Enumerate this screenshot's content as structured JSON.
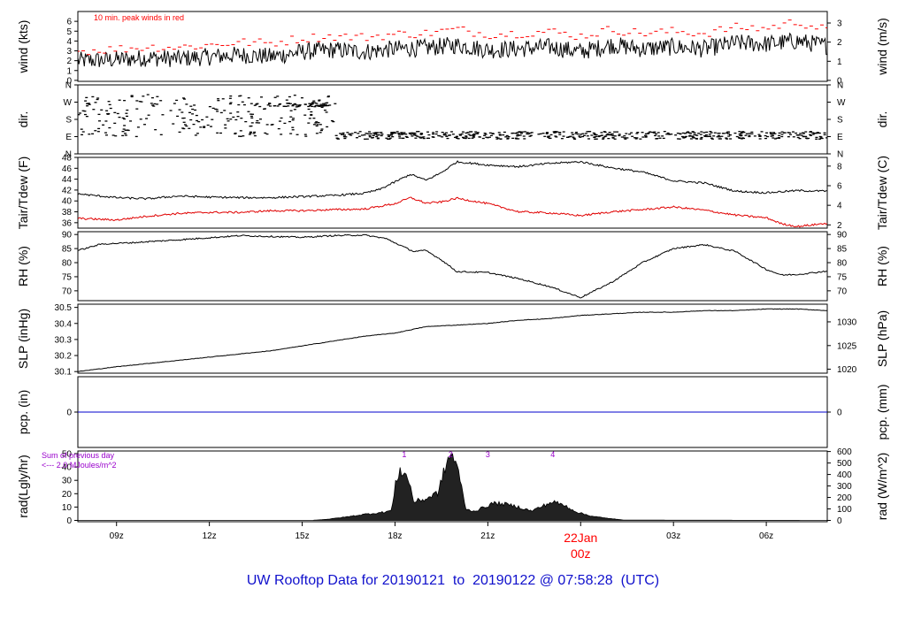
{
  "footer": {
    "text": "UW Rooftop Data for 20190121  to  20190122 @ 07:58:28  (UTC)",
    "color": "#1010cc"
  },
  "colors": {
    "trace": "#000000",
    "peak": "#ff0000",
    "dew": "#e00000",
    "pcp": "#0000cc",
    "note": "#9900cc",
    "date": "#ff0000"
  },
  "time_axis": {
    "range_hours": [
      7.75,
      31.97
    ],
    "ticks": [
      {
        "h": 9,
        "label": "09z"
      },
      {
        "h": 12,
        "label": "12z"
      },
      {
        "h": 15,
        "label": "15z"
      },
      {
        "h": 18,
        "label": "18z"
      },
      {
        "h": 21,
        "label": "21z"
      },
      {
        "h": 24,
        "label": "00z"
      },
      {
        "h": 27,
        "label": "03z"
      },
      {
        "h": 30,
        "label": "06z"
      }
    ],
    "date_label": "22Jan",
    "date_sub_label": "00z"
  },
  "chart_data": [
    {
      "id": "wind",
      "type": "line",
      "ylabel_left": "wind (kts)",
      "ylabel_right": "wind (m/s)",
      "ylim": [
        -0.1,
        7.0
      ],
      "left_ticks": [
        0,
        1,
        2,
        3,
        4,
        5,
        6
      ],
      "right_ticks": [
        {
          "v": 0,
          "label": "0"
        },
        {
          "v": 1.94,
          "label": "1"
        },
        {
          "v": 3.89,
          "label": "2"
        },
        {
          "v": 5.83,
          "label": "3"
        }
      ],
      "annotation": "10 min. peak winds in red",
      "series": [
        {
          "role": "speed",
          "x": [
            7.75,
            9,
            10,
            11,
            12,
            13,
            14,
            15,
            16,
            17,
            18,
            19,
            20,
            21,
            22,
            23,
            24,
            25,
            26,
            27,
            28,
            29,
            30,
            31,
            31.97
          ],
          "y": [
            2.0,
            2.1,
            2.3,
            2.2,
            2.4,
            2.6,
            2.4,
            2.9,
            3.1,
            2.9,
            3.2,
            3.3,
            3.6,
            3.1,
            3.2,
            3.4,
            2.9,
            3.6,
            3.2,
            3.4,
            3.2,
            3.8,
            3.7,
            4.0,
            3.5
          ]
        },
        {
          "role": "peak",
          "x": [
            7.75,
            9,
            10,
            11,
            12,
            13,
            14,
            15,
            16,
            17,
            18,
            19,
            20,
            21,
            22,
            23,
            24,
            25,
            26,
            27,
            28,
            29,
            30,
            31,
            31.97
          ],
          "y": [
            2.8,
            3.0,
            3.2,
            3.2,
            3.4,
            3.7,
            3.6,
            4.1,
            4.3,
            4.2,
            4.5,
            4.6,
            5.0,
            4.5,
            4.6,
            4.8,
            4.3,
            5.0,
            4.6,
            4.8,
            4.6,
            5.2,
            5.1,
            5.8,
            4.9
          ]
        }
      ]
    },
    {
      "id": "dir",
      "type": "scatter",
      "ylabel_left": "dir.",
      "ylabel_right": "dir.",
      "ylim": [
        0,
        360
      ],
      "left_ticks": [
        {
          "v": 0,
          "label": "N"
        },
        {
          "v": 90,
          "label": "E"
        },
        {
          "v": 180,
          "label": "S"
        },
        {
          "v": 270,
          "label": "W"
        },
        {
          "v": 360,
          "label": "N"
        }
      ],
      "right_ticks": [
        {
          "v": 0,
          "label": "N"
        },
        {
          "v": 90,
          "label": "E"
        },
        {
          "v": 180,
          "label": "S"
        },
        {
          "v": 270,
          "label": "W"
        },
        {
          "v": 360,
          "label": "N"
        }
      ],
      "series": [
        {
          "role": "early",
          "x_range": [
            7.75,
            16.1
          ],
          "center": 200,
          "spread": 110
        },
        {
          "role": "late",
          "x_range": [
            16.1,
            31.97
          ],
          "center": 97,
          "spread": 20
        },
        {
          "role": "west-band",
          "x_range": [
            13.3,
            15.8
          ],
          "center": 255,
          "spread": 10
        }
      ]
    },
    {
      "id": "temp",
      "type": "line",
      "ylabel_left": "Tair/Tdew (F)",
      "ylabel_right": "Tair/Tdew (C)",
      "ylim": [
        35,
        48
      ],
      "left_ticks": [
        36,
        38,
        40,
        42,
        44,
        46,
        48
      ],
      "right_ticks": [
        {
          "v": 35.6,
          "label": "2"
        },
        {
          "v": 39.2,
          "label": "4"
        },
        {
          "v": 42.8,
          "label": "6"
        },
        {
          "v": 46.4,
          "label": "8"
        }
      ],
      "series": [
        {
          "role": "air",
          "x": [
            7.75,
            9,
            10,
            11,
            12,
            13,
            14,
            15,
            16,
            17,
            17.5,
            18,
            18.5,
            19,
            19.5,
            20,
            21,
            22,
            23,
            24,
            25,
            26,
            27,
            28,
            29,
            30,
            31,
            31.97
          ],
          "y": [
            41.3,
            40.6,
            40.4,
            40.9,
            40.7,
            40.6,
            40.6,
            40.8,
            41.0,
            41.4,
            42.1,
            43.5,
            44.9,
            43.8,
            45.2,
            47.2,
            46.6,
            46.3,
            46.9,
            47.2,
            46.1,
            45.3,
            43.7,
            43.3,
            41.8,
            41.5,
            41.9,
            41.8
          ]
        },
        {
          "role": "dew",
          "x": [
            7.75,
            9,
            10,
            11,
            12,
            13,
            14,
            15,
            16,
            17,
            18,
            18.5,
            19,
            19.5,
            20,
            21,
            22,
            23,
            24,
            25,
            26,
            27,
            28,
            29,
            30,
            30.5,
            31,
            31.97
          ],
          "y": [
            36.8,
            36.5,
            37.2,
            37.7,
            37.9,
            37.9,
            38.2,
            38.2,
            38.4,
            38.5,
            39.5,
            40.6,
            39.6,
            39.8,
            40.5,
            39.5,
            38.0,
            37.8,
            37.3,
            38.0,
            38.4,
            38.9,
            38.3,
            37.4,
            36.9,
            35.8,
            35.3,
            35.9
          ]
        }
      ]
    },
    {
      "id": "rh",
      "type": "line",
      "ylabel_left": "RH (%)",
      "ylabel_right": "RH (%)",
      "ylim": [
        66.5,
        91
      ],
      "left_ticks": [
        70,
        75,
        80,
        85,
        90
      ],
      "right_ticks": [
        {
          "v": 70,
          "label": "70"
        },
        {
          "v": 75,
          "label": "75"
        },
        {
          "v": 80,
          "label": "80"
        },
        {
          "v": 85,
          "label": "85"
        },
        {
          "v": 90,
          "label": "90"
        }
      ],
      "series": [
        {
          "role": "rh",
          "x": [
            7.75,
            8.5,
            9.5,
            11,
            13,
            15,
            16,
            17,
            17.7,
            18.2,
            18.6,
            19,
            19.5,
            20,
            21,
            22,
            23,
            24,
            25,
            26,
            27,
            28,
            29,
            30,
            30.5,
            31,
            31.97
          ],
          "y": [
            84.3,
            86.6,
            87.1,
            88.1,
            89.6,
            89.0,
            89.6,
            89.8,
            88.6,
            86.0,
            84.0,
            84.3,
            81.0,
            76.8,
            76.5,
            74.3,
            71.5,
            67.6,
            73.0,
            80.0,
            85.0,
            86.4,
            84.0,
            77.6,
            75.6,
            75.8,
            77.0
          ]
        }
      ]
    },
    {
      "id": "slp",
      "type": "line",
      "ylabel_left": "SLP (inHg)",
      "ylabel_right": "SLP (hPa)",
      "ylim": [
        30.09,
        30.52
      ],
      "left_ticks": [
        30.1,
        30.2,
        30.3,
        30.4,
        30.5
      ],
      "left_tick_labels": [
        "30.1",
        "30.2",
        "30.3",
        "30.4",
        "30.5"
      ],
      "right_ticks": [
        {
          "v": 30.115,
          "label": "1020"
        },
        {
          "v": 30.262,
          "label": "1025"
        },
        {
          "v": 30.41,
          "label": "1030"
        }
      ],
      "series": [
        {
          "role": "slp",
          "x": [
            7.75,
            9,
            10,
            11,
            12,
            13,
            14,
            15,
            16,
            17,
            18,
            19,
            20,
            21,
            22,
            23,
            24,
            25,
            26,
            27,
            28,
            29,
            30,
            31,
            31.97
          ],
          "y": [
            30.1,
            30.13,
            30.15,
            30.17,
            30.19,
            30.21,
            30.23,
            30.26,
            30.29,
            30.32,
            30.34,
            30.38,
            30.39,
            30.4,
            30.42,
            30.43,
            30.45,
            30.46,
            30.47,
            30.47,
            30.48,
            30.48,
            30.49,
            30.49,
            30.48
          ]
        }
      ]
    },
    {
      "id": "pcp",
      "type": "line",
      "ylabel_left": "pcp. (in)",
      "ylabel_right": "pcp. (mm)",
      "ylim": [
        -1,
        1
      ],
      "left_ticks": [
        0
      ],
      "right_ticks": [
        {
          "v": 0,
          "label": "0"
        }
      ],
      "series": [
        {
          "role": "pcp",
          "x": [
            7.75,
            31.97
          ],
          "y": [
            0,
            0
          ]
        }
      ]
    },
    {
      "id": "rad",
      "type": "area",
      "ylabel_left": "rad(Lgly/hr)",
      "ylabel_right": "rad (W/m^2)",
      "ylim": [
        -1,
        52
      ],
      "left_ticks": [
        0,
        10,
        20,
        30,
        40,
        50
      ],
      "right_ticks": [
        {
          "v": 0,
          "label": "0"
        },
        {
          "v": 8.6,
          "label": "100"
        },
        {
          "v": 17.2,
          "label": "200"
        },
        {
          "v": 25.8,
          "label": "300"
        },
        {
          "v": 34.4,
          "label": "400"
        },
        {
          "v": 43.0,
          "label": "500"
        },
        {
          "v": 51.6,
          "label": "600"
        }
      ],
      "annotation_lines": [
        "Sum of previous day",
        "<--- 2.0 MJoules/m^2"
      ],
      "markers": [
        {
          "h": 18.3,
          "label": "1"
        },
        {
          "h": 19.8,
          "label": "2"
        },
        {
          "h": 21.0,
          "label": "3"
        },
        {
          "h": 23.1,
          "label": "4"
        }
      ],
      "series": [
        {
          "role": "rad",
          "x": [
            7.75,
            15.3,
            15.8,
            16.4,
            17.0,
            17.6,
            17.9,
            18.0,
            18.15,
            18.3,
            18.45,
            18.6,
            19.0,
            19.4,
            19.6,
            19.8,
            19.95,
            20.1,
            20.3,
            20.6,
            20.9,
            21.2,
            21.6,
            22.0,
            22.4,
            22.7,
            23.1,
            23.5,
            23.9,
            24.3,
            24.7,
            25.1,
            25.4,
            31.97
          ],
          "y": [
            0,
            0,
            0.8,
            2.5,
            4.5,
            6.0,
            7.5,
            25.0,
            38.0,
            35.0,
            30.0,
            14.0,
            16.0,
            21.0,
            38.0,
            50.0,
            45.0,
            30.0,
            8.0,
            7.0,
            10.0,
            13.0,
            12.0,
            10.0,
            7.0,
            10.0,
            14.0,
            11.0,
            6.0,
            3.5,
            2.0,
            1.0,
            0.2,
            0
          ]
        }
      ]
    }
  ]
}
